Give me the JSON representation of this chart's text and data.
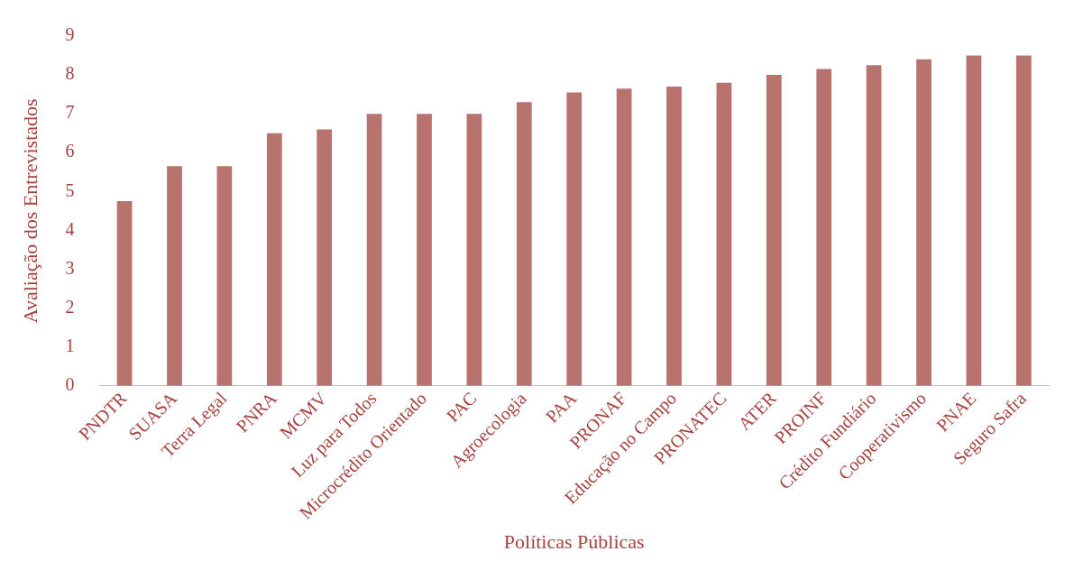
{
  "chart_data": {
    "type": "bar",
    "xlabel": "Políticas Públicas",
    "ylabel": "Avaliação dos Entrevistados",
    "categories": [
      "PNDTR",
      "SUASA",
      "Terra Legal",
      "PNRA",
      "MCMV",
      "Luz para Todos",
      "Microcrédito Orientado",
      "PAC",
      "Agroecologia",
      "PAA",
      "PRONAF",
      "Educação no Campo",
      "PRONATEC",
      "ATER",
      "PROINF",
      "Crédito Fundiário",
      "Cooperativismo",
      "PNAE",
      "Seguro Safra"
    ],
    "values": [
      4.75,
      5.65,
      5.65,
      6.5,
      6.6,
      7.0,
      7.0,
      7.0,
      7.3,
      7.55,
      7.65,
      7.7,
      7.8,
      8.0,
      8.15,
      8.25,
      8.4,
      8.5,
      8.5
    ],
    "color": "#b8736f",
    "ylim": [
      0,
      9
    ],
    "yticks": [
      0,
      1,
      2,
      3,
      4,
      5,
      6,
      7,
      8,
      9
    ],
    "grid": false,
    "legend": false
  }
}
